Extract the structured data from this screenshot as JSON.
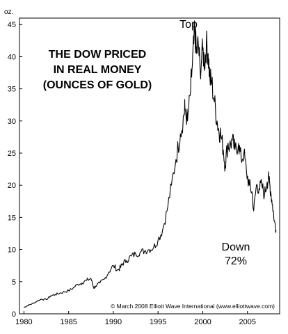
{
  "chart_data": {
    "type": "line",
    "title_lines": [
      "THE DOW PRICED",
      "IN REAL MONEY",
      "(OUNCES OF GOLD)"
    ],
    "ylabel": "oz.",
    "xlabel": "",
    "xlim": [
      1979.5,
      2008.6
    ],
    "ylim": [
      0,
      46
    ],
    "x_ticks": [
      1980,
      1985,
      1990,
      1995,
      2000,
      2005
    ],
    "y_ticks": [
      0,
      5,
      10,
      15,
      20,
      25,
      30,
      35,
      40,
      45
    ],
    "grid": false,
    "line_color": "#000000",
    "annotations": {
      "top": "Top",
      "down_line1": "Down",
      "down_line2": "72%",
      "credit": "© March 2008 Elliott Wave International (www.elliottwave.com)"
    },
    "series": [
      {
        "x": [
          1980.0,
          1980.3,
          1980.6,
          1981.0,
          1981.5,
          1982.0,
          1982.5,
          1983.0,
          1983.5,
          1984.0,
          1984.5,
          1985.0,
          1985.5,
          1986.0,
          1986.5,
          1987.0,
          1987.5,
          1987.8,
          1988.0,
          1988.5,
          1989.0,
          1989.5,
          1990.0,
          1990.5,
          1990.8,
          1991.0,
          1991.5,
          1992.0,
          1992.5,
          1993.0,
          1993.5,
          1994.0,
          1994.5,
          1995.0,
          1995.5,
          1996.0,
          1996.5,
          1997.0,
          1997.5,
          1997.9,
          1998.0,
          1998.3,
          1998.6,
          1998.8,
          1999.0,
          1999.1,
          1999.3,
          1999.5,
          1999.7,
          2000.0,
          2000.2,
          2000.4,
          2000.6,
          2000.8,
          2001.0,
          2001.3,
          2001.6,
          2001.8,
          2002.0,
          2002.3,
          2002.5,
          2002.8,
          2003.0,
          2003.3,
          2003.6,
          2004.0,
          2004.3,
          2004.6,
          2004.9,
          2005.2,
          2005.5,
          2005.7,
          2006.0,
          2006.3,
          2006.6,
          2006.9,
          2007.2,
          2007.4,
          2007.6,
          2007.8,
          2008.0,
          2008.2
        ],
        "values": [
          1.0,
          1.2,
          1.4,
          1.6,
          2.0,
          2.3,
          2.2,
          2.8,
          3.0,
          3.2,
          3.4,
          3.6,
          4.0,
          4.6,
          4.8,
          5.2,
          5.5,
          4.0,
          4.3,
          4.8,
          5.4,
          6.5,
          7.5,
          6.8,
          7.2,
          7.8,
          8.3,
          9.0,
          9.3,
          9.6,
          9.8,
          10.0,
          10.3,
          11.5,
          13.0,
          16.0,
          20.0,
          24.0,
          28.0,
          31.0,
          32.0,
          30.0,
          34.0,
          38.0,
          42.0,
          44.3,
          40.5,
          42.0,
          38.0,
          41.0,
          39.0,
          42.0,
          40.5,
          36.5,
          36.0,
          33.0,
          30.0,
          28.5,
          28.0,
          25.5,
          23.0,
          26.5,
          26.0,
          27.0,
          25.5,
          26.5,
          24.0,
          25.0,
          22.0,
          20.0,
          19.0,
          16.0,
          20.0,
          19.5,
          20.0,
          18.5,
          20.5,
          21.0,
          19.0,
          17.0,
          14.5,
          13.0
        ]
      }
    ]
  }
}
